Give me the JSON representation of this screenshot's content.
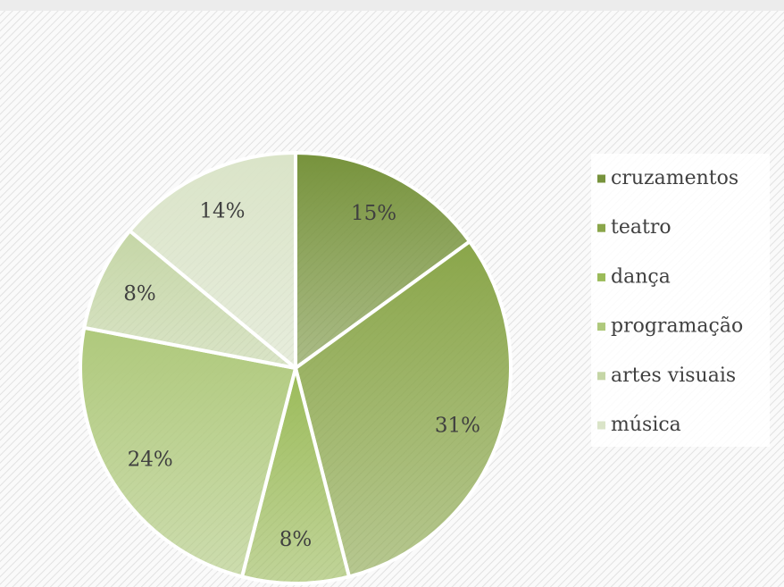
{
  "chart_data": {
    "type": "pie",
    "categories": [
      "cruzamentos",
      "teatro",
      "dança",
      "programação",
      "artes visuais",
      "música"
    ],
    "values": [
      15,
      31,
      8,
      24,
      8,
      14
    ],
    "value_labels": [
      "15%",
      "31%",
      "8%",
      "24%",
      "8%",
      "14%"
    ],
    "colors": [
      "#77933c",
      "#8aa64a",
      "#9bbb59",
      "#afc97c",
      "#c5d6a6",
      "#dae4c8"
    ],
    "legend": "right"
  }
}
